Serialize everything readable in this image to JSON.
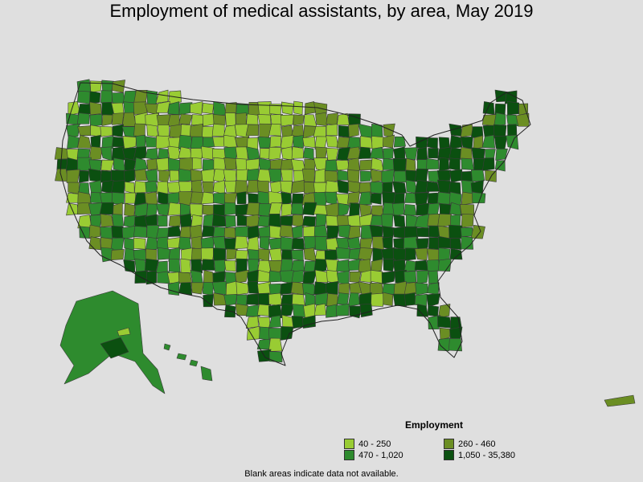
{
  "title": "Employment of medical assistants, by area, May 2019",
  "legend": {
    "title": "Employment",
    "items": [
      {
        "label": "40 - 250",
        "color": "#99cc33"
      },
      {
        "label": "260 - 460",
        "color": "#6b8e23"
      },
      {
        "label": "470 - 1,020",
        "color": "#2e8b2e"
      },
      {
        "label": "1,050 - 35,380",
        "color": "#0b5010"
      }
    ]
  },
  "footnote": "Blank areas indicate data not available.",
  "colors": {
    "background": "#dfdfdf",
    "border": "#3a3a3a"
  }
}
